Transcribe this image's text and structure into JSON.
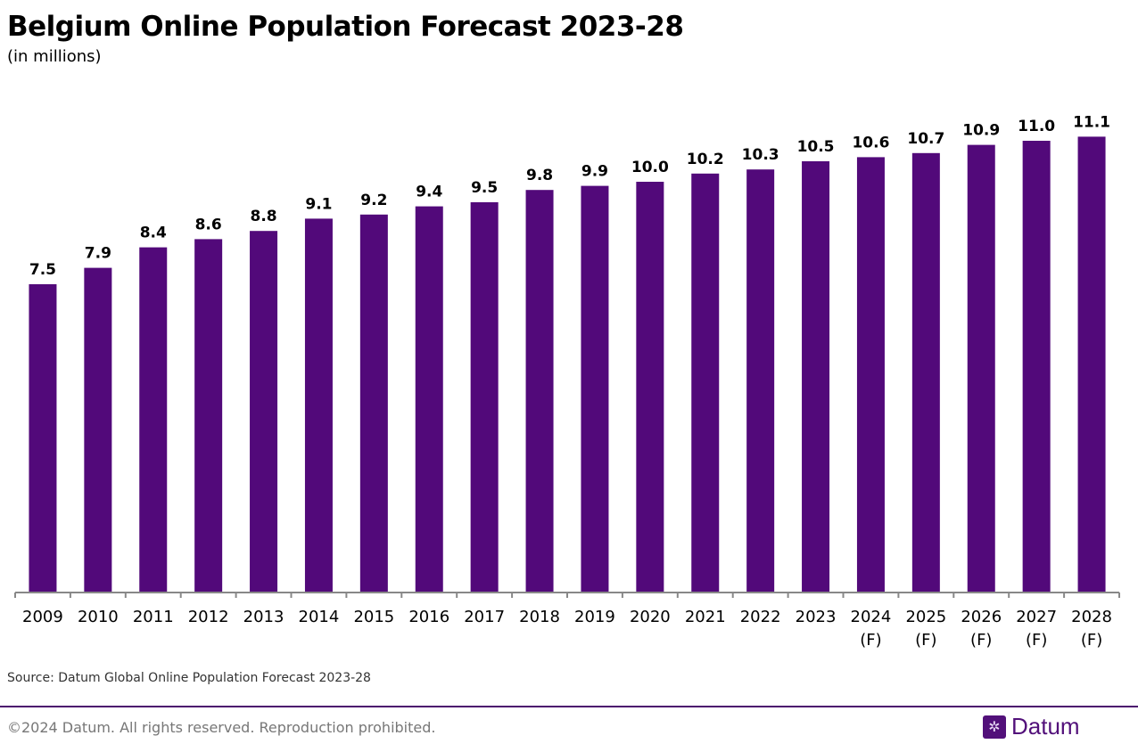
{
  "chart_data": {
    "type": "bar",
    "title": "Belgium Online Population Forecast 2023-28",
    "subtitle": "(in millions)",
    "categories": [
      "2009",
      "2010",
      "2011",
      "2012",
      "2013",
      "2014",
      "2015",
      "2016",
      "2017",
      "2018",
      "2019",
      "2020",
      "2021",
      "2022",
      "2023",
      "2024\n(F)",
      "2025\n(F)",
      "2026\n(F)",
      "2027\n(F)",
      "2028\n(F)"
    ],
    "values": [
      7.5,
      7.9,
      8.4,
      8.6,
      8.8,
      9.1,
      9.2,
      9.4,
      9.5,
      9.8,
      9.9,
      10.0,
      10.2,
      10.3,
      10.5,
      10.6,
      10.7,
      10.9,
      11.0,
      11.1
    ],
    "value_labels": [
      "7.5",
      "7.9",
      "8.4",
      "8.6",
      "8.8",
      "9.1",
      "9.2",
      "9.4",
      "9.5",
      "9.8",
      "9.9",
      "10.0",
      "10.2",
      "10.3",
      "10.5",
      "10.6",
      "10.7",
      "10.9",
      "11.0",
      "11.1"
    ],
    "ylim": [
      0,
      11.1
    ],
    "grid": false,
    "bar_color": "#52097a",
    "axis_color": "#888888"
  },
  "source": "Source: Datum Global Online Population Forecast 2023-28",
  "footer": {
    "copyright": "©2024 Datum. All rights reserved. Reproduction prohibited.",
    "logo_text": "Datum",
    "logo_icon": "snowflake-grid-icon",
    "rule_color": "#4b0f6e"
  }
}
